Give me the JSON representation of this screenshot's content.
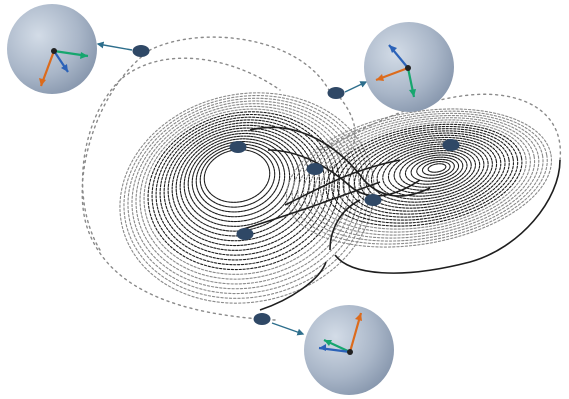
{
  "figure": {
    "background": "#ffffff"
  },
  "colors": {
    "trajectory": "#1e1e1e",
    "trajectory_light": "#8a8a8a",
    "marker": "#2f4866",
    "connector": "#2d6e8c",
    "sphere_light": "#c9d4e1",
    "sphere_dark": "#8797ad",
    "axis_blue": "#2b62b8",
    "axis_green": "#16a66e",
    "axis_orange": "#dc6b1c",
    "axis_origin": "#222222"
  }
}
